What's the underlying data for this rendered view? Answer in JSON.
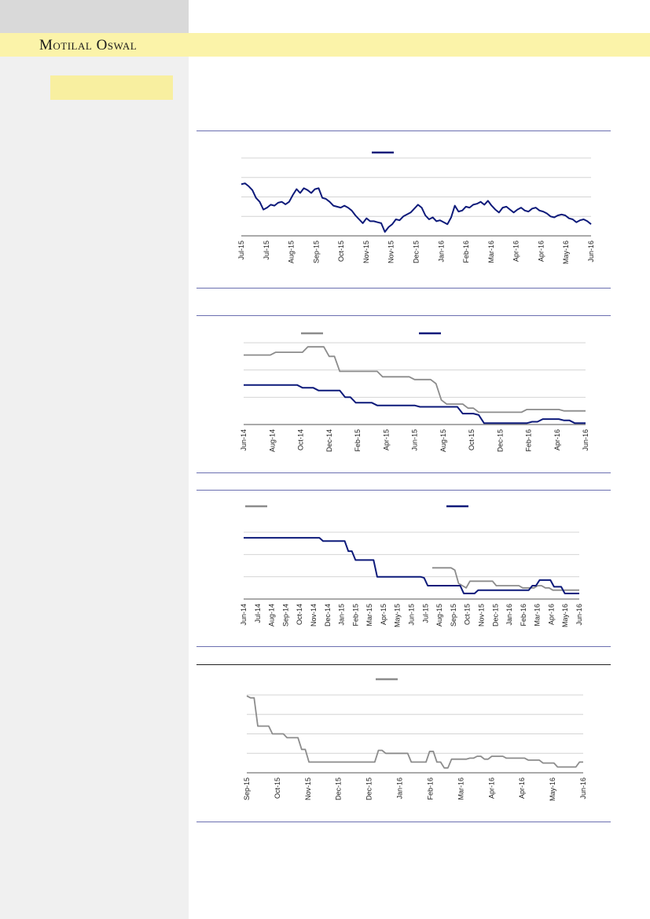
{
  "header": {
    "brand": "Motilal Oswal"
  },
  "colors": {
    "navy": "#0d1a7a",
    "grey": "#8c8c8c",
    "band": "#fbf3a9",
    "sidebar": "#f0f0f0"
  },
  "charts": [
    {
      "chart_data": {
        "type": "line",
        "legend": "top-center",
        "grid": true,
        "x_ticks": [
          "Jul-15",
          "Jul-15",
          "Aug-15",
          "Sep-15",
          "Oct-15",
          "Nov-15",
          "Nov-15",
          "Dec-15",
          "Jan-16",
          "Feb-16",
          "Mar-16",
          "Apr-16",
          "Apr-16",
          "May-16",
          "Jun-16"
        ],
        "ylim": [
          0,
          4
        ],
        "series": [
          {
            "color": "navy",
            "values": [
              2.65,
              2.7,
              2.55,
              2.35,
              1.95,
              1.75,
              1.35,
              1.45,
              1.6,
              1.55,
              1.7,
              1.75,
              1.62,
              1.75,
              2.1,
              2.4,
              2.2,
              2.45,
              2.35,
              2.2,
              2.4,
              2.45,
              1.95,
              1.9,
              1.75,
              1.55,
              1.5,
              1.45,
              1.55,
              1.45,
              1.3,
              1.05,
              0.85,
              0.65,
              0.9,
              0.75,
              0.75,
              0.7,
              0.65,
              0.2,
              0.45,
              0.6,
              0.85,
              0.8,
              1.0,
              1.1,
              1.2,
              1.4,
              1.6,
              1.45,
              1.05,
              0.85,
              0.95,
              0.75,
              0.8,
              0.7,
              0.6,
              0.95,
              1.55,
              1.25,
              1.3,
              1.5,
              1.45,
              1.6,
              1.65,
              1.75,
              1.6,
              1.8,
              1.55,
              1.35,
              1.2,
              1.45,
              1.5,
              1.35,
              1.2,
              1.35,
              1.45,
              1.3,
              1.25,
              1.4,
              1.45,
              1.3,
              1.25,
              1.15,
              1.0,
              0.95,
              1.05,
              1.1,
              1.05,
              0.9,
              0.85,
              0.7,
              0.8,
              0.85,
              0.75,
              0.6
            ]
          }
        ]
      }
    },
    {
      "chart_data": {
        "type": "line",
        "legend": "top-center",
        "grid": true,
        "x_ticks": [
          "Jun-14",
          "Aug-14",
          "Oct-14",
          "Dec-14",
          "Feb-15",
          "Apr-15",
          "Jun-15",
          "Aug-15",
          "Oct-15",
          "Dec-15",
          "Feb-16",
          "Apr-16",
          "Jun-16"
        ],
        "ylim": [
          0,
          3
        ],
        "series": [
          {
            "color": "grey",
            "values": [
              2.55,
              2.55,
              2.55,
              2.55,
              2.55,
              2.55,
              2.65,
              2.65,
              2.65,
              2.65,
              2.65,
              2.65,
              2.85,
              2.85,
              2.85,
              2.85,
              2.5,
              2.5,
              1.95,
              1.95,
              1.95,
              1.95,
              1.95,
              1.95,
              1.95,
              1.95,
              1.75,
              1.75,
              1.75,
              1.75,
              1.75,
              1.75,
              1.65,
              1.65,
              1.65,
              1.65,
              1.5,
              0.9,
              0.75,
              0.75,
              0.75,
              0.75,
              0.6,
              0.6,
              0.45,
              0.45,
              0.45,
              0.45,
              0.45,
              0.45,
              0.45,
              0.45,
              0.45,
              0.55,
              0.55,
              0.55,
              0.55,
              0.55,
              0.55,
              0.55,
              0.5,
              0.5,
              0.5,
              0.5,
              0.5
            ]
          },
          {
            "color": "navy",
            "values": [
              1.45,
              1.45,
              1.45,
              1.45,
              1.45,
              1.45,
              1.45,
              1.45,
              1.45,
              1.45,
              1.45,
              1.35,
              1.35,
              1.35,
              1.25,
              1.25,
              1.25,
              1.25,
              1.25,
              1.0,
              1.0,
              0.8,
              0.8,
              0.8,
              0.8,
              0.7,
              0.7,
              0.7,
              0.7,
              0.7,
              0.7,
              0.7,
              0.7,
              0.65,
              0.65,
              0.65,
              0.65,
              0.65,
              0.65,
              0.65,
              0.65,
              0.4,
              0.4,
              0.4,
              0.35,
              0.05,
              0.05,
              0.05,
              0.05,
              0.05,
              0.05,
              0.05,
              0.05,
              0.05,
              0.1,
              0.1,
              0.2,
              0.2,
              0.2,
              0.2,
              0.15,
              0.15,
              0.05,
              0.05,
              0.05
            ]
          }
        ]
      }
    },
    {
      "chart_data": {
        "type": "line",
        "legend": "top",
        "grid": true,
        "x_ticks": [
          "Jun-14",
          "Jul-14",
          "Aug-14",
          "Sep-14",
          "Oct-14",
          "Nov-14",
          "Dec-14",
          "Jan-15",
          "Feb-15",
          "Mar-15",
          "Apr-15",
          "May-15",
          "Jun-15",
          "Jul-15",
          "Aug-15",
          "Sep-15",
          "Oct-15",
          "Nov-15",
          "Dec-15",
          "Jan-16",
          "Feb-16",
          "Mar-16",
          "Apr-16",
          "May-16",
          "Jun-16"
        ],
        "ylim": [
          0,
          3
        ],
        "series": [
          {
            "color": "grey",
            "values": [
              null,
              null,
              null,
              null,
              null,
              null,
              null,
              null,
              null,
              null,
              null,
              null,
              null,
              null,
              null,
              null,
              null,
              null,
              null,
              null,
              null,
              null,
              null,
              null,
              null,
              null,
              null,
              null,
              null,
              null,
              null,
              null,
              null,
              null,
              null,
              null,
              null,
              null,
              null,
              null,
              null,
              null,
              null,
              null,
              null,
              null,
              null,
              null,
              null,
              null,
              1.4,
              1.4,
              1.4,
              1.4,
              1.4,
              1.4,
              1.3,
              0.7,
              0.6,
              0.5,
              0.8,
              0.8,
              0.8,
              0.8,
              0.8,
              0.8,
              0.8,
              0.6,
              0.6,
              0.6,
              0.6,
              0.6,
              0.6,
              0.6,
              0.5,
              0.5,
              0.5,
              0.5,
              0.6,
              0.6,
              0.5,
              0.5,
              0.4,
              0.4,
              0.4,
              0.4,
              0.4,
              0.4,
              0.4,
              0.4
            ]
          },
          {
            "color": "navy",
            "values": [
              2.75,
              2.75,
              2.75,
              2.75,
              2.75,
              2.75,
              2.75,
              2.75,
              2.75,
              2.75,
              2.75,
              2.75,
              2.75,
              2.75,
              2.75,
              2.75,
              2.75,
              2.75,
              2.75,
              2.75,
              2.75,
              2.75,
              2.6,
              2.6,
              2.6,
              2.6,
              2.6,
              2.6,
              2.6,
              2.15,
              2.15,
              1.75,
              1.75,
              1.75,
              1.75,
              1.75,
              1.75,
              1.0,
              1.0,
              1.0,
              1.0,
              1.0,
              1.0,
              1.0,
              1.0,
              1.0,
              1.0,
              1.0,
              1.0,
              1.0,
              0.95,
              0.6,
              0.6,
              0.6,
              0.6,
              0.6,
              0.6,
              0.6,
              0.6,
              0.6,
              0.6,
              0.25,
              0.25,
              0.25,
              0.25,
              0.4,
              0.4,
              0.4,
              0.4,
              0.4,
              0.4,
              0.4,
              0.4,
              0.4,
              0.4,
              0.4,
              0.4,
              0.4,
              0.4,
              0.4,
              0.6,
              0.6,
              0.85,
              0.85,
              0.85,
              0.85,
              0.55,
              0.55,
              0.55,
              0.25,
              0.25,
              0.25,
              0.25,
              0.25
            ]
          }
        ]
      }
    },
    {
      "chart_data": {
        "type": "line",
        "legend": "top-center",
        "grid": true,
        "x_ticks": [
          "Sep-15",
          "Oct-15",
          "Nov-15",
          "Dec-15",
          "Dec-15",
          "Jan-16",
          "Feb-16",
          "Mar-16",
          "Apr-16",
          "Apr-16",
          "May-16",
          "Jun-16"
        ],
        "ylim": [
          0,
          4
        ],
        "series": [
          {
            "color": "grey",
            "values": [
              3.95,
              3.85,
              3.85,
              2.4,
              2.4,
              2.4,
              2.4,
              2.0,
              2.0,
              2.0,
              2.0,
              1.8,
              1.8,
              1.8,
              1.8,
              1.2,
              1.2,
              0.55,
              0.55,
              0.55,
              0.55,
              0.55,
              0.55,
              0.55,
              0.55,
              0.55,
              0.55,
              0.55,
              0.55,
              0.55,
              0.55,
              0.55,
              0.55,
              0.55,
              0.55,
              0.55,
              1.15,
              1.15,
              1.0,
              1.0,
              1.0,
              1.0,
              1.0,
              1.0,
              1.0,
              0.55,
              0.55,
              0.55,
              0.55,
              0.55,
              1.1,
              1.1,
              0.55,
              0.55,
              0.25,
              0.25,
              0.7,
              0.7,
              0.7,
              0.7,
              0.7,
              0.75,
              0.75,
              0.85,
              0.85,
              0.7,
              0.7,
              0.85,
              0.85,
              0.85,
              0.85,
              0.75,
              0.75,
              0.75,
              0.75,
              0.75,
              0.75,
              0.65,
              0.65,
              0.65,
              0.65,
              0.5,
              0.5,
              0.5,
              0.5,
              0.3,
              0.3,
              0.3,
              0.3,
              0.3,
              0.3,
              0.55,
              0.55
            ]
          }
        ]
      }
    }
  ]
}
